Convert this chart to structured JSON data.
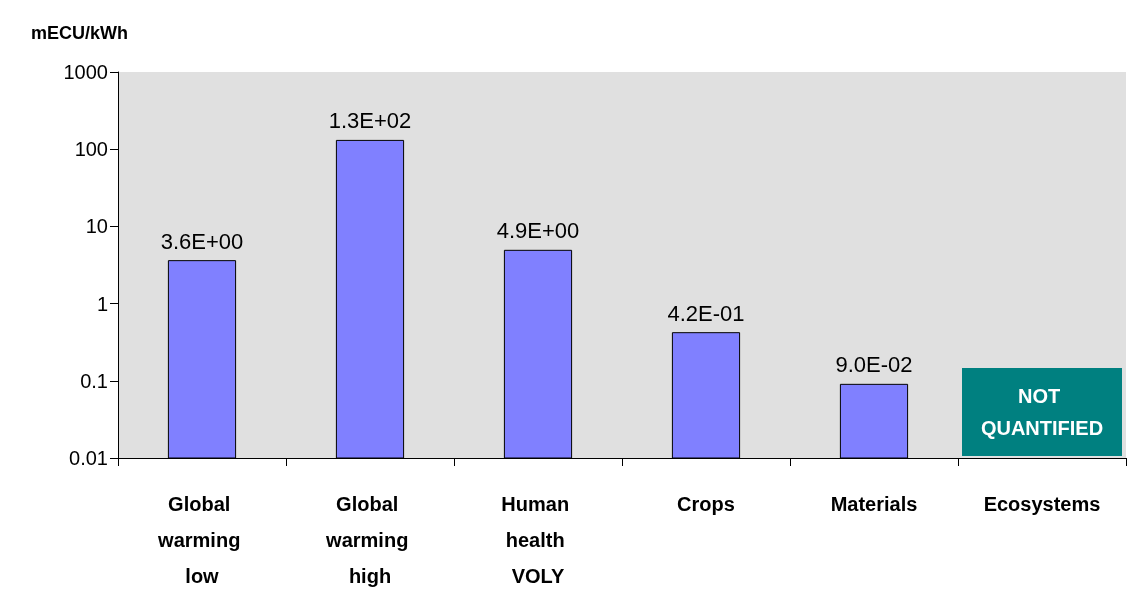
{
  "chart_data": {
    "type": "bar",
    "ylabel": "mECU/kWh",
    "categories": [
      "Global warming low",
      "Global warming high",
      "Human health VOLY",
      "Crops",
      "Materials",
      "Ecosystems"
    ],
    "values": [
      3.6,
      130,
      4.9,
      0.42,
      0.09,
      null
    ],
    "value_labels": [
      "3.6E+00",
      "1.3E+02",
      "4.9E+00",
      "4.2E-01",
      "9.0E-02",
      null
    ],
    "color": "#8080ff",
    "log": true,
    "ylim": [
      0.01,
      1000
    ],
    "yticks": [
      0.01,
      0.1,
      1,
      10,
      100,
      1000
    ],
    "annotations": [
      "NOT QUANTIFIED"
    ]
  }
}
